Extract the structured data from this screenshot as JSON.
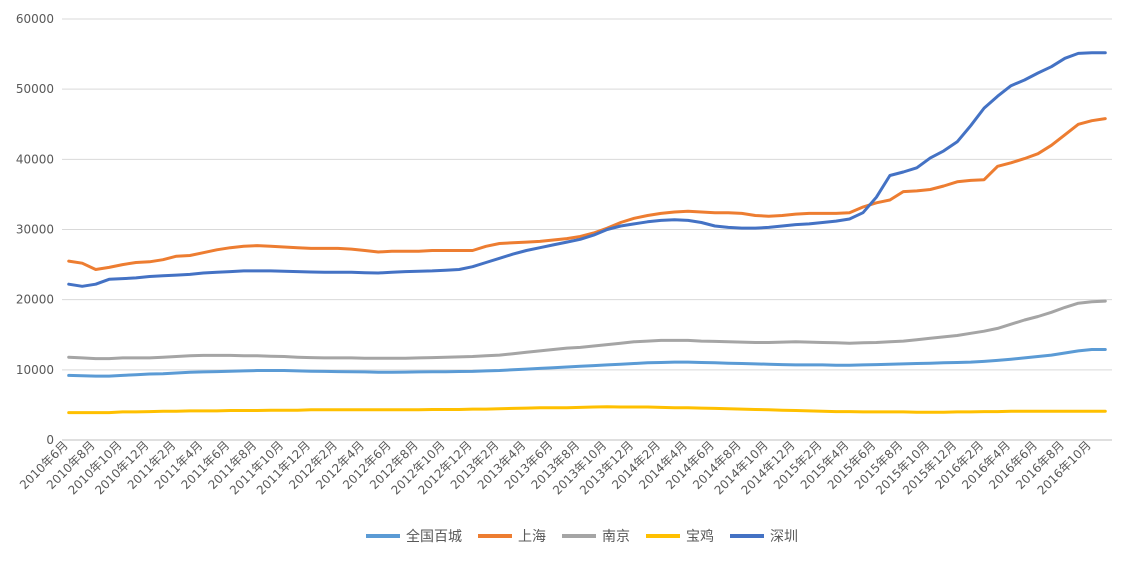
{
  "chart_data": {
    "type": "line",
    "title": "",
    "xlabel": "",
    "ylabel": "",
    "ylim": [
      0,
      60000
    ],
    "yticks": [
      0,
      10000,
      20000,
      30000,
      40000,
      50000,
      60000
    ],
    "ytick_labels": [
      "0",
      "10000",
      "20000",
      "30000",
      "40000",
      "50000",
      "60000"
    ],
    "grid": true,
    "legend_position": "bottom",
    "x": [
      "2010年6月",
      "2010年7月",
      "2010年8月",
      "2010年9月",
      "2010年10月",
      "2010年11月",
      "2010年12月",
      "2011年1月",
      "2011年2月",
      "2011年3月",
      "2011年4月",
      "2011年5月",
      "2011年6月",
      "2011年7月",
      "2011年8月",
      "2011年9月",
      "2011年10月",
      "2011年11月",
      "2011年12月",
      "2012年1月",
      "2012年2月",
      "2012年3月",
      "2012年4月",
      "2012年5月",
      "2012年6月",
      "2012年7月",
      "2012年8月",
      "2012年9月",
      "2012年10月",
      "2012年11月",
      "2012年12月",
      "2013年1月",
      "2013年2月",
      "2013年3月",
      "2013年4月",
      "2013年5月",
      "2013年6月",
      "2013年7月",
      "2013年8月",
      "2013年9月",
      "2013年10月",
      "2013年11月",
      "2013年12月",
      "2014年1月",
      "2014年2月",
      "2014年3月",
      "2014年4月",
      "2014年5月",
      "2014年6月",
      "2014年7月",
      "2014年8月",
      "2014年9月",
      "2014年10月",
      "2014年11月",
      "2014年12月",
      "2015年1月",
      "2015年2月",
      "2015年3月",
      "2015年4月",
      "2015年5月",
      "2015年6月",
      "2015年7月",
      "2015年8月",
      "2015年9月",
      "2015年10月",
      "2015年11月",
      "2015年12月",
      "2016年1月",
      "2016年2月",
      "2016年3月",
      "2016年4月",
      "2016年5月",
      "2016年6月",
      "2016年7月",
      "2016年8月",
      "2016年9月",
      "2016年10月",
      "2016年11月"
    ],
    "x_tick_labels": [
      "2010年6月",
      "2010年8月",
      "2010年10月",
      "2010年12月",
      "2011年2月",
      "2011年4月",
      "2011年6月",
      "2011年8月",
      "2011年10月",
      "2011年12月",
      "2012年2月",
      "2012年4月",
      "2012年6月",
      "2012年8月",
      "2012年10月",
      "2012年12月",
      "2013年2月",
      "2013年4月",
      "2013年6月",
      "2013年8月",
      "2013年10月",
      "2013年12月",
      "2014年2月",
      "2014年4月",
      "2014年6月",
      "2014年8月",
      "2014年10月",
      "2014年12月",
      "2015年2月",
      "2015年4月",
      "2015年6月",
      "2015年8月",
      "2015年10月",
      "2015年12月",
      "2016年2月",
      "2016年4月",
      "2016年6月",
      "2016年8月",
      "2016年10月"
    ],
    "series": [
      {
        "name": "全国百城",
        "color": "#5B9BD5",
        "values": [
          9200,
          9150,
          9100,
          9100,
          9200,
          9300,
          9400,
          9450,
          9550,
          9650,
          9700,
          9750,
          9800,
          9850,
          9900,
          9900,
          9900,
          9850,
          9800,
          9780,
          9750,
          9720,
          9700,
          9650,
          9650,
          9680,
          9700,
          9720,
          9740,
          9760,
          9780,
          9850,
          9900,
          10000,
          10100,
          10200,
          10300,
          10400,
          10500,
          10600,
          10700,
          10800,
          10900,
          11000,
          11050,
          11100,
          11100,
          11050,
          11000,
          10950,
          10900,
          10850,
          10800,
          10750,
          10700,
          10700,
          10700,
          10650,
          10650,
          10700,
          10750,
          10800,
          10850,
          10900,
          10950,
          11000,
          11050,
          11100,
          11200,
          11350,
          11500,
          11700,
          11900,
          12100,
          12400,
          12700,
          12900,
          12900
        ]
      },
      {
        "name": "上海",
        "color": "#ED7D31",
        "values": [
          25500,
          25200,
          24300,
          24600,
          25000,
          25300,
          25400,
          25700,
          26200,
          26300,
          26700,
          27100,
          27400,
          27600,
          27700,
          27600,
          27500,
          27400,
          27300,
          27300,
          27300,
          27200,
          27000,
          26800,
          26900,
          26900,
          26900,
          27000,
          27000,
          27000,
          27000,
          27600,
          28000,
          28100,
          28200,
          28300,
          28500,
          28700,
          29000,
          29500,
          30200,
          31000,
          31600,
          32000,
          32300,
          32500,
          32600,
          32500,
          32400,
          32400,
          32300,
          32000,
          31900,
          32000,
          32200,
          32300,
          32300,
          32300,
          32400,
          33200,
          33800,
          34200,
          35400,
          35500,
          35700,
          36200,
          36800,
          37000,
          37100,
          39000,
          39500,
          40100,
          40800,
          42000,
          43500,
          45000,
          45500,
          45800
        ]
      },
      {
        "name": "南京",
        "color": "#A5A5A5",
        "values": [
          11800,
          11700,
          11600,
          11600,
          11700,
          11700,
          11700,
          11800,
          11900,
          12000,
          12050,
          12050,
          12050,
          12000,
          12000,
          11950,
          11900,
          11800,
          11750,
          11700,
          11700,
          11700,
          11650,
          11650,
          11650,
          11650,
          11700,
          11750,
          11800,
          11850,
          11900,
          12000,
          12100,
          12300,
          12500,
          12700,
          12900,
          13100,
          13200,
          13400,
          13600,
          13800,
          14000,
          14100,
          14200,
          14200,
          14200,
          14100,
          14050,
          14000,
          13950,
          13900,
          13900,
          13950,
          14000,
          13950,
          13900,
          13850,
          13800,
          13850,
          13900,
          14000,
          14100,
          14300,
          14500,
          14700,
          14900,
          15200,
          15500,
          15900,
          16500,
          17100,
          17600,
          18200,
          18900,
          19500,
          19700,
          19800
        ]
      },
      {
        "name": "宝鸡",
        "color": "#FFC000",
        "values": [
          3900,
          3900,
          3900,
          3900,
          4000,
          4000,
          4050,
          4100,
          4100,
          4150,
          4150,
          4150,
          4200,
          4200,
          4200,
          4250,
          4250,
          4250,
          4300,
          4300,
          4300,
          4300,
          4300,
          4300,
          4300,
          4300,
          4300,
          4350,
          4350,
          4350,
          4400,
          4400,
          4450,
          4500,
          4550,
          4600,
          4600,
          4600,
          4650,
          4700,
          4750,
          4700,
          4700,
          4700,
          4650,
          4600,
          4600,
          4550,
          4500,
          4450,
          4400,
          4350,
          4300,
          4250,
          4200,
          4150,
          4100,
          4050,
          4050,
          4000,
          4000,
          4000,
          4000,
          3950,
          3950,
          3950,
          4000,
          4000,
          4050,
          4050,
          4100,
          4100,
          4100,
          4100,
          4100,
          4100,
          4100,
          4100
        ]
      },
      {
        "name": "深圳",
        "color": "#4472C4",
        "values": [
          22200,
          21900,
          22200,
          22900,
          23000,
          23100,
          23300,
          23400,
          23500,
          23600,
          23800,
          23900,
          24000,
          24100,
          24100,
          24100,
          24050,
          24000,
          23950,
          23900,
          23900,
          23900,
          23850,
          23800,
          23900,
          24000,
          24050,
          24100,
          24200,
          24300,
          24700,
          25300,
          25900,
          26500,
          27000,
          27400,
          27800,
          28200,
          28600,
          29200,
          30000,
          30500,
          30800,
          31100,
          31300,
          31400,
          31300,
          31000,
          30500,
          30300,
          30200,
          30200,
          30300,
          30500,
          30700,
          30800,
          31000,
          31200,
          31500,
          32400,
          34600,
          37700,
          38200,
          38800,
          40200,
          41200,
          42500,
          44800,
          47300,
          49000,
          50500,
          51300,
          52300,
          53200,
          54400,
          55100,
          55200,
          55200
        ]
      }
    ]
  }
}
